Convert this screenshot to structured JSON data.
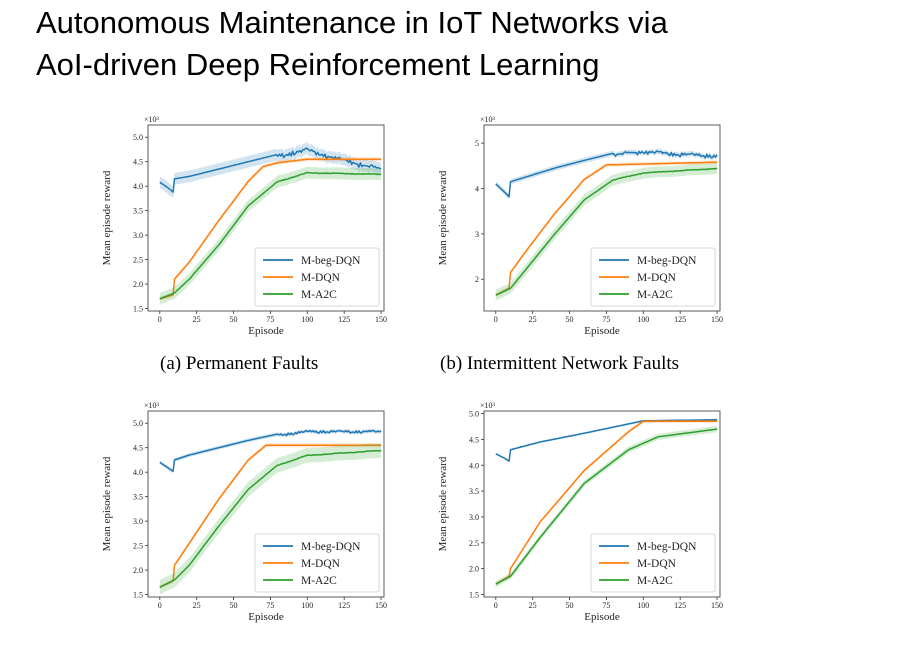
{
  "title_line1": "Autonomous Maintenance in IoT Networks via",
  "title_line2": "AoI-driven Deep Reinforcement Learning",
  "captions": [
    "(a) Permanent Faults",
    "(b) Intermittent Network Faults"
  ],
  "colors": {
    "blue": "#1f77b4",
    "orange": "#ff7f0e",
    "green": "#2ca02c"
  },
  "chart_data": [
    {
      "type": "line",
      "xlabel": "Episode",
      "ylabel": "Mean episode reward",
      "multiplier": "×10³",
      "xlim": [
        -8,
        152
      ],
      "ylim": [
        1.45,
        5.25
      ],
      "xticks": [
        0,
        25,
        50,
        75,
        100,
        125,
        150
      ],
      "yticks": [
        1.5,
        2.0,
        2.5,
        3.0,
        3.5,
        4.0,
        4.5,
        5.0
      ],
      "ytick_labels": [
        "1.5",
        "2.0",
        "2.5",
        "3.0",
        "3.5",
        "4.0",
        "4.5",
        "5.0"
      ],
      "legend": [
        "M-beg-DQN",
        "M-DQN",
        "M-A2C"
      ],
      "series": [
        {
          "name": "M-beg-DQN",
          "noise": 0.12,
          "band": 0.12,
          "points": [
            [
              0,
              4.08
            ],
            [
              5,
              3.98
            ],
            [
              9,
              3.88
            ],
            [
              10,
              4.15
            ],
            [
              20,
              4.2
            ],
            [
              40,
              4.35
            ],
            [
              60,
              4.5
            ],
            [
              80,
              4.65
            ],
            [
              90,
              4.73
            ],
            [
              100,
              4.78
            ],
            [
              110,
              4.7
            ],
            [
              120,
              4.6
            ],
            [
              130,
              4.55
            ],
            [
              140,
              4.45
            ],
            [
              150,
              4.4
            ]
          ]
        },
        {
          "name": "M-DQN",
          "noise": 0,
          "band": 0.04,
          "points": [
            [
              0,
              1.7
            ],
            [
              9,
              1.78
            ],
            [
              10,
              2.1
            ],
            [
              20,
              2.45
            ],
            [
              40,
              3.3
            ],
            [
              60,
              4.1
            ],
            [
              70,
              4.4
            ],
            [
              80,
              4.48
            ],
            [
              100,
              4.55
            ],
            [
              150,
              4.55
            ]
          ]
        },
        {
          "name": "M-A2C",
          "noise": 0.02,
          "band": 0.12,
          "points": [
            [
              0,
              1.7
            ],
            [
              10,
              1.82
            ],
            [
              20,
              2.1
            ],
            [
              40,
              2.8
            ],
            [
              60,
              3.6
            ],
            [
              80,
              4.1
            ],
            [
              100,
              4.28
            ],
            [
              150,
              4.25
            ]
          ]
        }
      ]
    },
    {
      "type": "line",
      "xlabel": "Episode",
      "ylabel": "Mean episode reward",
      "multiplier": "×10³",
      "xlim": [
        -8,
        152
      ],
      "ylim": [
        1.3,
        5.4
      ],
      "xticks": [
        0,
        25,
        50,
        75,
        100,
        125,
        150
      ],
      "yticks": [
        2,
        3,
        4,
        5
      ],
      "ytick_labels": [
        "2",
        "3",
        "4",
        "5"
      ],
      "legend": [
        "M-beg-DQN",
        "M-DQN",
        "M-A2C"
      ],
      "series": [
        {
          "name": "M-beg-DQN",
          "noise": 0.1,
          "band": 0.06,
          "points": [
            [
              0,
              4.1
            ],
            [
              5,
              3.95
            ],
            [
              9,
              3.82
            ],
            [
              10,
              4.15
            ],
            [
              20,
              4.25
            ],
            [
              40,
              4.45
            ],
            [
              60,
              4.62
            ],
            [
              80,
              4.78
            ],
            [
              100,
              4.85
            ],
            [
              120,
              4.8
            ],
            [
              150,
              4.75
            ]
          ]
        },
        {
          "name": "M-DQN",
          "noise": 0,
          "band": 0.04,
          "points": [
            [
              0,
              1.65
            ],
            [
              9,
              1.8
            ],
            [
              10,
              2.15
            ],
            [
              20,
              2.6
            ],
            [
              40,
              3.45
            ],
            [
              60,
              4.2
            ],
            [
              75,
              4.52
            ],
            [
              150,
              4.58
            ]
          ]
        },
        {
          "name": "M-A2C",
          "noise": 0.02,
          "band": 0.12,
          "points": [
            [
              0,
              1.65
            ],
            [
              10,
              1.8
            ],
            [
              20,
              2.2
            ],
            [
              40,
              3.0
            ],
            [
              60,
              3.75
            ],
            [
              80,
              4.2
            ],
            [
              100,
              4.35
            ],
            [
              150,
              4.45
            ]
          ]
        }
      ]
    },
    {
      "type": "line",
      "xlabel": "Episode",
      "ylabel": "Mean episode reward",
      "multiplier": "×10³",
      "xlim": [
        -8,
        152
      ],
      "ylim": [
        1.45,
        5.25
      ],
      "xticks": [
        0,
        25,
        50,
        75,
        100,
        125,
        150
      ],
      "yticks": [
        1.5,
        2.0,
        2.5,
        3.0,
        3.5,
        4.0,
        4.5,
        5.0
      ],
      "ytick_labels": [
        "1.5",
        "2.0",
        "2.5",
        "3.0",
        "3.5",
        "4.0",
        "4.5",
        "5.0"
      ],
      "legend": [
        "M-beg-DQN",
        "M-DQN",
        "M-A2C"
      ],
      "series": [
        {
          "name": "M-beg-DQN",
          "noise": 0.06,
          "band": 0.04,
          "points": [
            [
              0,
              4.2
            ],
            [
              5,
              4.1
            ],
            [
              9,
              4.02
            ],
            [
              10,
              4.25
            ],
            [
              20,
              4.35
            ],
            [
              40,
              4.5
            ],
            [
              60,
              4.65
            ],
            [
              80,
              4.78
            ],
            [
              100,
              4.85
            ],
            [
              150,
              4.85
            ]
          ]
        },
        {
          "name": "M-DQN",
          "noise": 0,
          "band": 0.04,
          "points": [
            [
              0,
              1.65
            ],
            [
              9,
              1.78
            ],
            [
              10,
              2.1
            ],
            [
              20,
              2.55
            ],
            [
              40,
              3.45
            ],
            [
              60,
              4.25
            ],
            [
              72,
              4.55
            ],
            [
              150,
              4.55
            ]
          ]
        },
        {
          "name": "M-A2C",
          "noise": 0.02,
          "band": 0.15,
          "points": [
            [
              0,
              1.65
            ],
            [
              10,
              1.8
            ],
            [
              20,
              2.1
            ],
            [
              40,
              2.9
            ],
            [
              60,
              3.65
            ],
            [
              80,
              4.15
            ],
            [
              100,
              4.35
            ],
            [
              150,
              4.45
            ]
          ]
        }
      ]
    },
    {
      "type": "line",
      "xlabel": "Episode",
      "ylabel": "Mean episode reward",
      "multiplier": "×10³",
      "xlim": [
        -8,
        152
      ],
      "ylim": [
        1.45,
        5.05
      ],
      "xticks": [
        0,
        25,
        50,
        75,
        100,
        125,
        150
      ],
      "yticks": [
        1.5,
        2.0,
        2.5,
        3.0,
        3.5,
        4.0,
        4.5,
        5.0
      ],
      "ytick_labels": [
        "1.5",
        "2.0",
        "2.5",
        "3.0",
        "3.5",
        "4.0",
        "4.5",
        "5.0"
      ],
      "legend": [
        "M-beg-DQN",
        "M-DQN",
        "M-A2C"
      ],
      "series": [
        {
          "name": "M-beg-DQN",
          "noise": 0,
          "band": 0.02,
          "points": [
            [
              0,
              4.22
            ],
            [
              5,
              4.15
            ],
            [
              9,
              4.08
            ],
            [
              10,
              4.3
            ],
            [
              30,
              4.45
            ],
            [
              60,
              4.62
            ],
            [
              90,
              4.8
            ],
            [
              100,
              4.86
            ],
            [
              150,
              4.88
            ]
          ]
        },
        {
          "name": "M-DQN",
          "noise": 0,
          "band": 0.03,
          "points": [
            [
              0,
              1.7
            ],
            [
              9,
              1.85
            ],
            [
              10,
              2.0
            ],
            [
              30,
              2.9
            ],
            [
              60,
              3.9
            ],
            [
              90,
              4.65
            ],
            [
              100,
              4.85
            ],
            [
              150,
              4.85
            ]
          ]
        },
        {
          "name": "M-A2C",
          "noise": 0,
          "band": 0.06,
          "points": [
            [
              0,
              1.7
            ],
            [
              10,
              1.85
            ],
            [
              30,
              2.6
            ],
            [
              60,
              3.65
            ],
            [
              90,
              4.3
            ],
            [
              110,
              4.55
            ],
            [
              150,
              4.7
            ]
          ]
        }
      ]
    }
  ]
}
